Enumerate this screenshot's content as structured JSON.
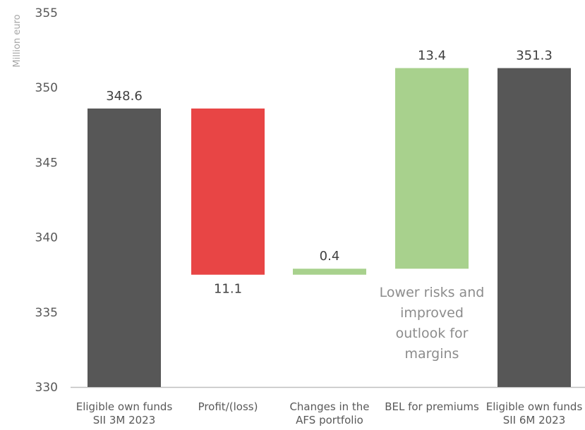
{
  "chart_data": {
    "type": "bar",
    "subtype": "waterfall",
    "ylabel": "Million euro",
    "ylim": [
      330,
      355
    ],
    "yticks": [
      330,
      335,
      340,
      345,
      350,
      355
    ],
    "grid": false,
    "categories": [
      [
        "Eligible own funds",
        "SII 3M 2023"
      ],
      [
        "Profit/(loss)"
      ],
      [
        "Changes in the",
        "AFS portfolio"
      ],
      [
        "BEL for premiums"
      ],
      [
        "Eligible own funds",
        "SII 6M 2023"
      ]
    ],
    "bars": [
      {
        "kind": "total",
        "start": 330,
        "end": 348.6,
        "label": "348.6",
        "label_position": "above",
        "color": "#575757"
      },
      {
        "kind": "decrease",
        "start": 348.6,
        "end": 337.5,
        "label": "11.1",
        "label_position": "below",
        "color": "#e84545"
      },
      {
        "kind": "increase",
        "start": 337.5,
        "end": 337.9,
        "label": "0.4",
        "label_position": "above",
        "color": "#a8d18d"
      },
      {
        "kind": "increase",
        "start": 337.9,
        "end": 351.3,
        "label": "13.4",
        "label_position": "above",
        "color": "#a8d18d"
      },
      {
        "kind": "total",
        "start": 330,
        "end": 351.3,
        "label": "351.3",
        "label_position": "above",
        "color": "#575757"
      }
    ],
    "annotations": [
      {
        "bar_index": 3,
        "lines": [
          "Lower risks and",
          "improved",
          "outlook for",
          "margins"
        ],
        "color": "#8c8c8c"
      }
    ],
    "colors": {
      "total": "#575757",
      "decrease": "#e84545",
      "increase": "#a8d18d",
      "axis": "#bfbfbf",
      "tick_text": "#595959",
      "label_text": "#404040",
      "ylabel_text": "#a6a6a6"
    }
  }
}
